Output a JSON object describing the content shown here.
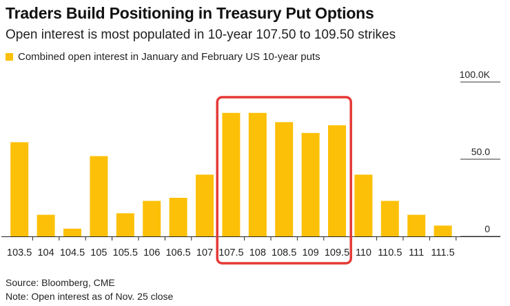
{
  "title": "Traders Build Positioning in Treasury Put Options",
  "subtitle": "Open interest is most populated in 10-year 107.50 to 109.50 strikes",
  "legend": [
    {
      "name": "Combined open interest in January and February US 10-year puts",
      "color": "#fdc008"
    }
  ],
  "footer": {
    "source": "Source: Bloomberg, CME",
    "note": "Note: Open interest as of Nov. 25 close"
  },
  "colors": {
    "bar": "#fdc008",
    "highlight_box": "#e53935",
    "axis": "#222222",
    "gridline": "#333333"
  },
  "chart_data": {
    "type": "bar",
    "categories": [
      "103.5",
      "104",
      "104.5",
      "105",
      "105.5",
      "106",
      "106.5",
      "107",
      "107.5",
      "108",
      "108.5",
      "109",
      "109.5",
      "110",
      "110.5",
      "111",
      "111.5"
    ],
    "series": [
      {
        "name": "Combined open interest in January and February US 10-year puts",
        "values": [
          61,
          14,
          5,
          52,
          15,
          23,
          25,
          40,
          80,
          80,
          74,
          67,
          72,
          40,
          23,
          14,
          7
        ]
      }
    ],
    "ylim": [
      0,
      100
    ],
    "yticks": [
      {
        "value": 0,
        "label": "0"
      },
      {
        "value": 50,
        "label": "50.0"
      },
      {
        "value": 100,
        "label": "100.0K"
      }
    ],
    "yaxis_position": "right",
    "highlight": {
      "from": "107.5",
      "to": "109.5"
    },
    "grid": false
  }
}
